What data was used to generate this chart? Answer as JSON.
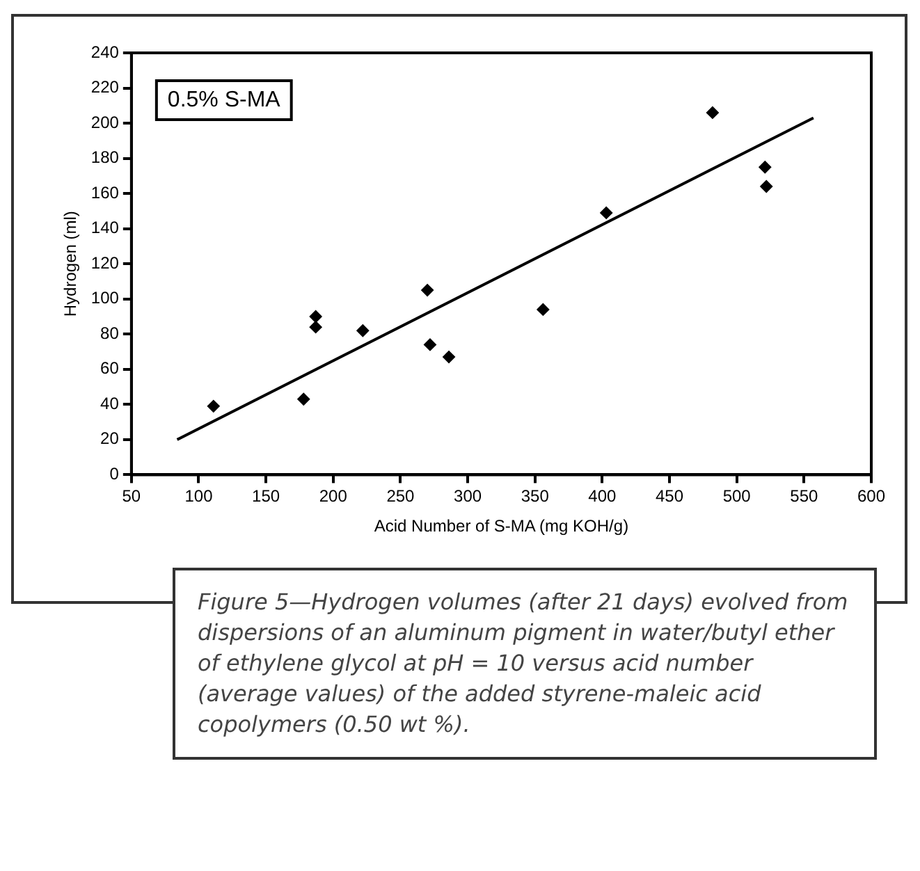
{
  "chart_data": {
    "type": "scatter",
    "xlabel": "Acid Number of S-MA (mg KOH/g)",
    "ylabel": "Hydrogen (ml)",
    "annotations": [
      "0.5% S-MA",
      "Figure 5—Hydrogen volumes (after 21 days) evolved from dispersions of an aluminum pigment in water/butyl ether of ethylene glycol at pH = 10 versus acid number (average values) of the added styrene-maleic acid copolymers (0.50 wt %)."
    ],
    "series": [
      {
        "color": "#000000",
        "marker": "diamond",
        "x": [
          111,
          178,
          187,
          187,
          222,
          270,
          272,
          286,
          356,
          403,
          482,
          521,
          522
        ],
        "values": [
          39,
          43,
          90,
          84,
          82,
          105,
          74,
          67,
          94,
          149,
          206,
          175,
          164
        ]
      },
      {
        "type": "line",
        "marker": "none",
        "color": "#000000",
        "x": [
          84,
          557
        ],
        "values": [
          20,
          203
        ]
      }
    ],
    "xlim": [
      50,
      600
    ],
    "xticks": [
      50,
      100,
      150,
      200,
      250,
      300,
      350,
      400,
      450,
      500,
      550,
      600
    ],
    "ylim": [
      0,
      240
    ],
    "yticks": [
      0,
      20,
      40,
      60,
      80,
      100,
      120,
      140,
      160,
      180,
      200,
      220,
      240
    ],
    "grid": false,
    "legend": false,
    "line_style": "solid"
  }
}
